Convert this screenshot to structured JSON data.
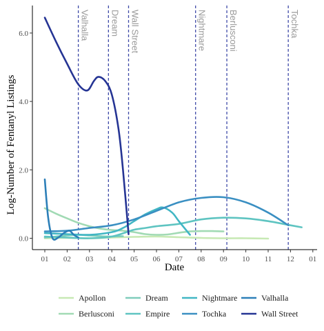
{
  "chart_data": {
    "type": "line",
    "xlabel": "Date",
    "ylabel": "Log-Number of Fentanyl Listings",
    "xlim": [
      1,
      12.5
    ],
    "ylim": [
      -0.3,
      6.8
    ],
    "x_ticks": [
      1,
      2,
      3,
      4,
      5,
      6,
      7,
      8,
      9,
      10,
      11,
      12,
      13
    ],
    "x_tick_labels": [
      "01",
      "02",
      "03",
      "04",
      "05",
      "06",
      "07",
      "08",
      "09",
      "10",
      "11",
      "12",
      "01"
    ],
    "y_ticks": [
      0,
      2,
      4,
      6
    ],
    "y_tick_labels": [
      "0.0",
      "2.0",
      "4.0",
      "6.0"
    ],
    "grid": false,
    "legend_position": "bottom",
    "events": [
      {
        "label": "Valhalla",
        "x": 2.5
      },
      {
        "label": "Dream",
        "x": 3.85
      },
      {
        "label": "Wall Street",
        "x": 4.75
      },
      {
        "label": "Nightmare",
        "x": 7.75
      },
      {
        "label": "Berlusconi",
        "x": 9.15
      },
      {
        "label": "Tochka",
        "x": 11.9
      }
    ],
    "series": [
      {
        "name": "Apollon",
        "color": "#c7e9b4",
        "points": [
          [
            1,
            0.0
          ],
          [
            2,
            0.01
          ],
          [
            3,
            0.0
          ],
          [
            4,
            0.02
          ],
          [
            5,
            0.04
          ],
          [
            6,
            0.05
          ],
          [
            7,
            0.03
          ],
          [
            8,
            0.01
          ],
          [
            9,
            0.0
          ],
          [
            10,
            0.0
          ],
          [
            11,
            -0.01
          ]
        ]
      },
      {
        "name": "Berlusconi",
        "color": "#a1dab4",
        "points": [
          [
            1,
            0.88
          ],
          [
            1.5,
            0.72
          ],
          [
            2,
            0.58
          ],
          [
            2.5,
            0.45
          ],
          [
            3,
            0.35
          ],
          [
            3.5,
            0.28
          ],
          [
            4,
            0.24
          ],
          [
            4.5,
            0.22
          ],
          [
            5,
            0.18
          ],
          [
            5.5,
            0.12
          ],
          [
            6,
            0.1
          ],
          [
            6.5,
            0.11
          ],
          [
            7,
            0.16
          ],
          [
            7.5,
            0.2
          ],
          [
            8,
            0.21
          ],
          [
            8.5,
            0.21
          ],
          [
            9,
            0.2
          ]
        ]
      },
      {
        "name": "Dream",
        "color": "#7fcdbb",
        "points": [
          [
            1,
            0.02
          ],
          [
            1.5,
            0.05
          ],
          [
            2,
            0.08
          ],
          [
            2.5,
            0.1
          ],
          [
            3,
            0.08
          ],
          [
            3.5,
            0.06
          ],
          [
            4,
            0.05
          ],
          [
            4.5,
            0.06
          ]
        ]
      },
      {
        "name": "Empire",
        "color": "#5ec4c1",
        "points": [
          [
            1,
            0.05
          ],
          [
            2,
            0.02
          ],
          [
            3,
            0.0
          ],
          [
            4,
            0.05
          ],
          [
            4.75,
            0.2
          ],
          [
            5,
            0.25
          ],
          [
            5.5,
            0.3
          ],
          [
            6,
            0.35
          ],
          [
            7,
            0.42
          ],
          [
            8,
            0.55
          ],
          [
            9,
            0.6
          ],
          [
            10,
            0.58
          ],
          [
            11,
            0.5
          ],
          [
            12,
            0.38
          ],
          [
            12.5,
            0.32
          ]
        ]
      },
      {
        "name": "Nightmare",
        "color": "#41b6c4",
        "points": [
          [
            1,
            0.15
          ],
          [
            2,
            0.12
          ],
          [
            3,
            0.1
          ],
          [
            4,
            0.18
          ],
          [
            4.5,
            0.3
          ],
          [
            5,
            0.5
          ],
          [
            5.5,
            0.7
          ],
          [
            6,
            0.85
          ],
          [
            6.3,
            0.9
          ],
          [
            6.7,
            0.75
          ],
          [
            7,
            0.5
          ],
          [
            7.5,
            0.1
          ]
        ]
      },
      {
        "name": "Tochka",
        "color": "#3a8fc2",
        "points": [
          [
            1,
            0.2
          ],
          [
            2,
            0.22
          ],
          [
            3,
            0.3
          ],
          [
            4,
            0.38
          ],
          [
            5,
            0.55
          ],
          [
            6,
            0.8
          ],
          [
            7,
            1.05
          ],
          [
            8,
            1.18
          ],
          [
            9,
            1.2
          ],
          [
            10,
            1.05
          ],
          [
            11,
            0.75
          ],
          [
            11.9,
            0.38
          ]
        ]
      },
      {
        "name": "Valhalla",
        "color": "#2c7fb8",
        "points": [
          [
            1,
            1.72
          ],
          [
            1.15,
            0.6
          ],
          [
            1.35,
            0.0
          ],
          [
            1.6,
            0.02
          ],
          [
            1.85,
            0.15
          ],
          [
            2.1,
            0.22
          ],
          [
            2.3,
            0.1
          ],
          [
            2.5,
            0.02
          ]
        ]
      },
      {
        "name": "Wall Street",
        "color": "#253494",
        "points": [
          [
            1,
            6.45
          ],
          [
            1.5,
            5.75
          ],
          [
            2,
            5.1
          ],
          [
            2.5,
            4.5
          ],
          [
            2.9,
            4.32
          ],
          [
            3.2,
            4.6
          ],
          [
            3.4,
            4.72
          ],
          [
            3.7,
            4.6
          ],
          [
            4,
            4.2
          ],
          [
            4.3,
            3.2
          ],
          [
            4.5,
            2.0
          ],
          [
            4.75,
            0.12
          ]
        ]
      }
    ]
  }
}
